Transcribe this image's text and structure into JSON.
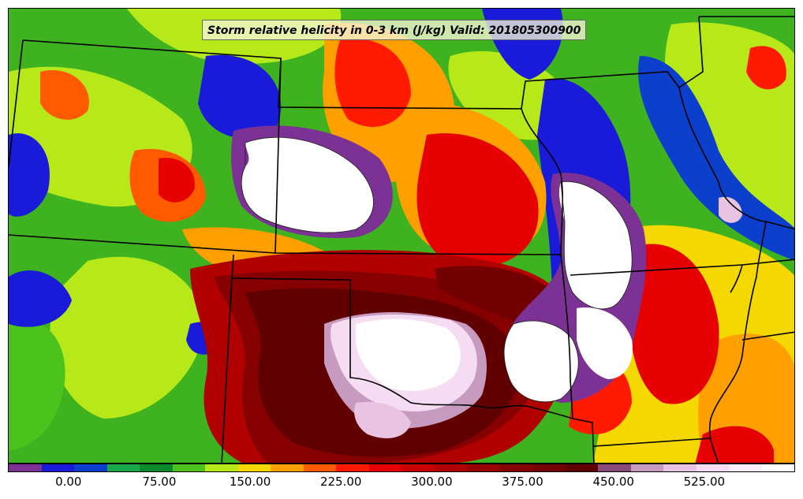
{
  "title": "Storm relative helicity in 0-3 km (J/kg) Valid: 201805300900",
  "colorbar": {
    "colors": [
      "#7b3294",
      "#1a1ad9",
      "#0b3fcc",
      "#1aa84a",
      "#0a8a2a",
      "#4cc21c",
      "#b6e81a",
      "#f5d800",
      "#ff9f00",
      "#ff5a00",
      "#ff1a00",
      "#e60000",
      "#c80000",
      "#b00000",
      "#980000",
      "#860000",
      "#720000",
      "#600000",
      "#8a4a7a",
      "#c79ac0",
      "#e8c4e2",
      "#f5dcf2",
      "#fbeefa",
      "#ffffff"
    ],
    "tick_labels": [
      "0.00",
      "75.00",
      "150.00",
      "225.00",
      "300.00",
      "375.00",
      "450.00",
      "525.00"
    ],
    "tick_values": [
      0,
      75,
      150,
      225,
      300,
      375,
      450,
      525
    ],
    "min": -50,
    "max": 600
  },
  "map_region": "Central United States"
}
